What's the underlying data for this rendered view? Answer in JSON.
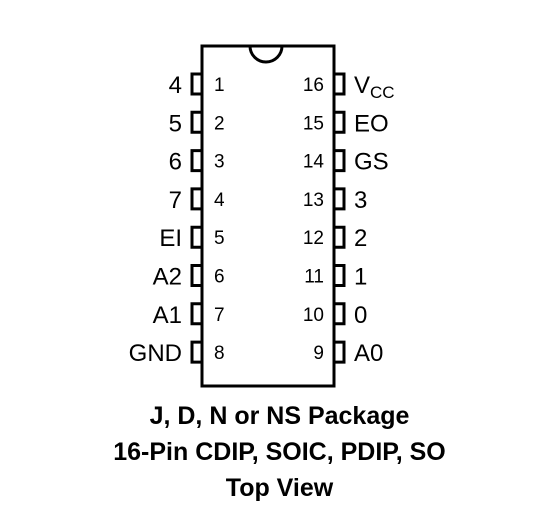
{
  "package": {
    "left_pins": [
      {
        "num": "1",
        "name": "4"
      },
      {
        "num": "2",
        "name": "5"
      },
      {
        "num": "3",
        "name": "6"
      },
      {
        "num": "4",
        "name": "7"
      },
      {
        "num": "5",
        "name": "EI"
      },
      {
        "num": "6",
        "name": "A2"
      },
      {
        "num": "7",
        "name": "A1"
      },
      {
        "num": "8",
        "name": "GND"
      }
    ],
    "right_pins": [
      {
        "num": "16",
        "name": "V",
        "sub": "CC"
      },
      {
        "num": "15",
        "name": "EO"
      },
      {
        "num": "14",
        "name": "GS"
      },
      {
        "num": "13",
        "name": "3"
      },
      {
        "num": "12",
        "name": "2"
      },
      {
        "num": "11",
        "name": "1"
      },
      {
        "num": "10",
        "name": "0"
      },
      {
        "num": "9",
        "name": "A0"
      }
    ]
  },
  "caption": {
    "line1": "J, D, N or NS Package",
    "line2": "16-Pin CDIP, SOIC, PDIP, SO",
    "line3": "Top View"
  },
  "colors": {
    "stroke": "#000000",
    "background": "#ffffff"
  }
}
